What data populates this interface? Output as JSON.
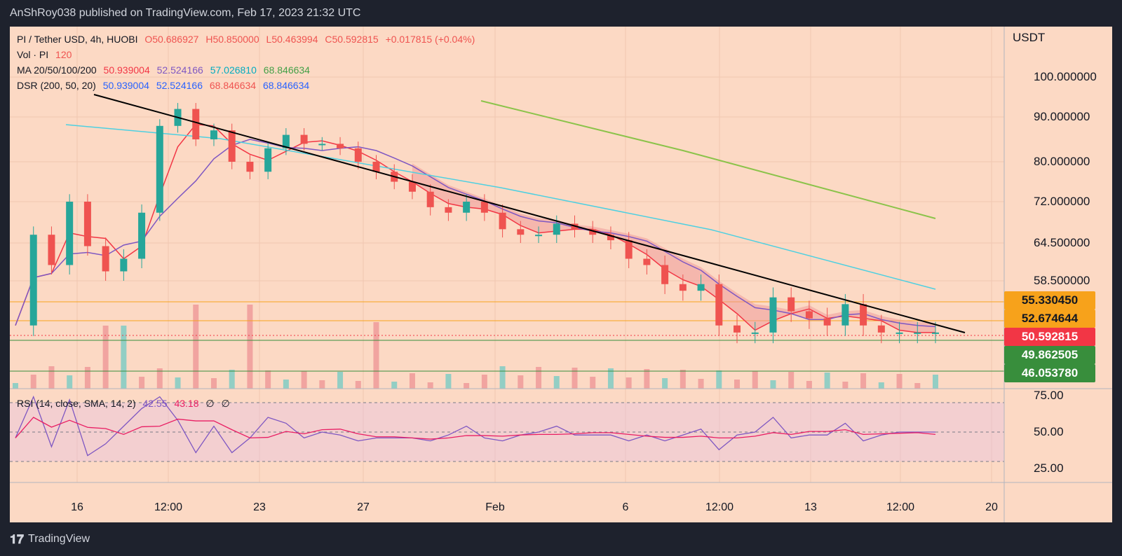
{
  "header": {
    "published_text": "AnShRoy038 published on TradingView.com, Feb 17, 2023 21:32 UTC"
  },
  "legend": {
    "symbol_line": "PI / Tether USD, 4h, HUOBI",
    "open": "O50.686927",
    "high": "H50.850000",
    "low": "L50.463994",
    "close": "C50.592815",
    "change": "+0.017815 (+0.04%)",
    "vol_label": "Vol · PI",
    "vol_value": "120",
    "ma_label": "MA 20/50/100/200",
    "ma_values": [
      "50.939004",
      "52.524166",
      "57.026810",
      "68.846634"
    ],
    "dsr_label": "DSR (200, 50, 20)",
    "dsr_values": [
      "50.939004",
      "52.524166",
      "68.846634",
      "68.846634"
    ],
    "rsi_label": "RSI (14, close, SMA, 14, 2)",
    "rsi_values": [
      "42.55",
      "43.18",
      "∅",
      "∅"
    ]
  },
  "price_scale": {
    "currency": "USDT",
    "ticks": [
      "100.000000",
      "90.000000",
      "80.000000",
      "72.000000",
      "64.500000",
      "58.500000"
    ],
    "levels": [
      {
        "label": "55.330450",
        "color": "#f7a21b"
      },
      {
        "label": "52.674644",
        "color": "#f7a21b"
      },
      {
        "label": "50.592815",
        "color": "#f23645"
      },
      {
        "label": "49.862505",
        "color": "#388e3c"
      },
      {
        "label": "46.053780",
        "color": "#388e3c"
      }
    ]
  },
  "rsi_scale": {
    "ticks": [
      "75.00",
      "50.00",
      "25.00"
    ]
  },
  "time_axis": {
    "labels": [
      "16",
      "12:00",
      "23",
      "27",
      "Feb",
      "6",
      "12:00",
      "13",
      "12:00",
      "20"
    ]
  },
  "footer": {
    "brand": "TradingView"
  },
  "colors": {
    "up": "#26a69a",
    "down": "#ef5350",
    "ma20": "#f23645",
    "ma50": "#7e57c2",
    "ma100": "#4dd0e1",
    "ma200": "#8bc34a",
    "trendline": "#000000",
    "rsi": "#7e57c2",
    "rsi_ma": "#e91e63"
  },
  "chart_data": [
    {
      "type": "candlestick",
      "title": "PI / Tether USD, 4h, HUOBI",
      "ylabel": "USDT",
      "x_ticks": [
        "16",
        "12:00",
        "23",
        "27",
        "Feb",
        "6",
        "12:00",
        "13",
        "12:00",
        "20"
      ],
      "y_ticks": [
        100,
        90,
        80,
        72,
        64.5,
        58.5
      ],
      "horizontal_levels": [
        55.33045,
        52.674644,
        49.862505,
        46.05378
      ],
      "last_price": 50.592815,
      "close_series_approx": [
        52,
        66,
        61,
        72,
        64,
        60,
        62,
        70,
        88,
        92,
        85,
        87,
        80,
        78,
        83,
        86,
        84,
        84,
        83,
        80,
        78,
        76,
        74,
        71,
        70,
        72,
        70,
        67,
        66,
        66,
        68,
        67,
        66,
        65,
        62,
        61,
        58,
        57,
        58,
        52,
        51,
        51,
        56,
        54,
        53,
        52,
        55,
        52,
        51,
        51,
        51,
        51
      ],
      "moving_averages": [
        {
          "name": "MA 20",
          "last": 50.939004
        },
        {
          "name": "MA 50",
          "last": 52.524166
        },
        {
          "name": "MA 100",
          "last": 57.02681
        },
        {
          "name": "MA 200",
          "last": 68.846634
        }
      ]
    },
    {
      "type": "line",
      "title": "RSI (14, close, SMA, 14, 2)",
      "y_ticks": [
        75,
        50,
        25
      ],
      "series": [
        {
          "name": "RSI",
          "last": 42.55
        },
        {
          "name": "SMA",
          "last": 43.18
        }
      ]
    }
  ]
}
